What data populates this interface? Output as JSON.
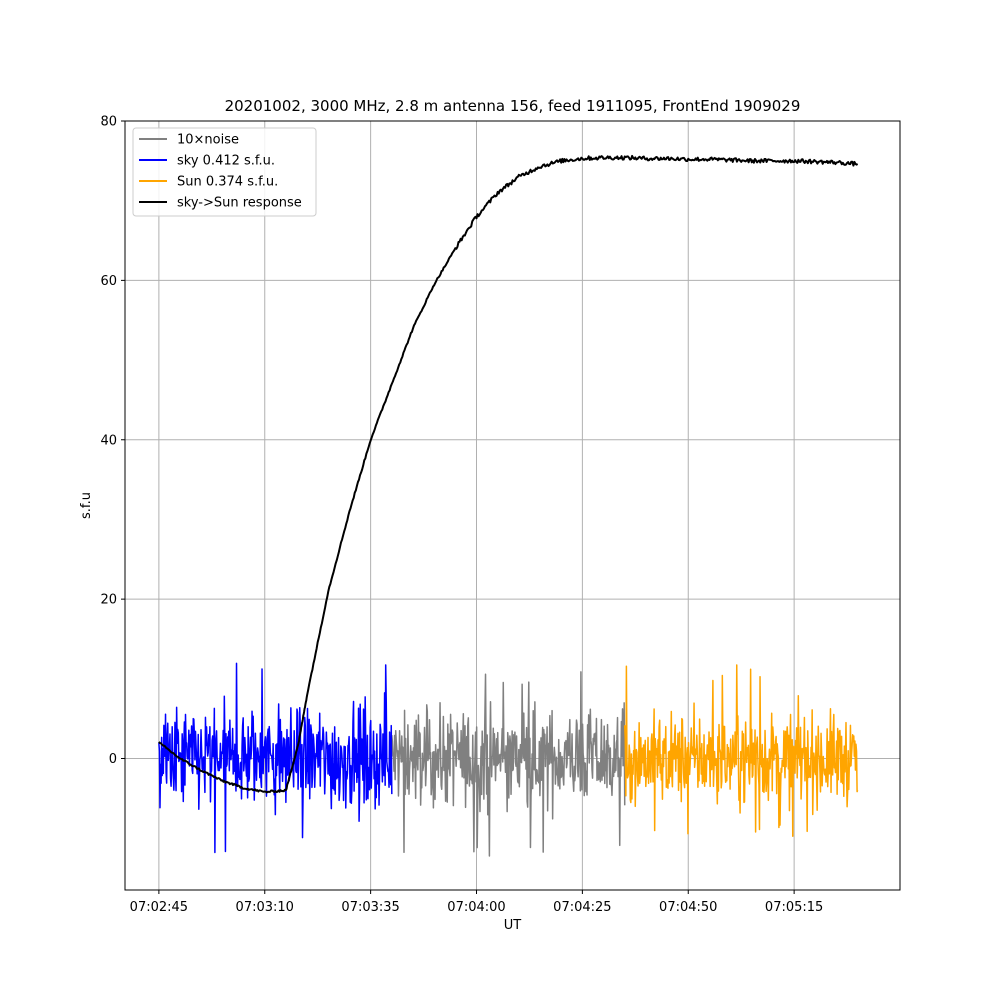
{
  "chart_data": {
    "type": "line",
    "title": "20201002, 3000 MHz, 2.8 m antenna 156, feed 1911095, FrontEnd 1909029",
    "xlabel": "UT",
    "ylabel": "s.f.u",
    "x_range": [
      "07:02:37",
      "07:05:40"
    ],
    "ylim": [
      -16.5,
      80
    ],
    "x_ticks": [
      "07:02:45",
      "07:03:10",
      "07:03:35",
      "07:04:00",
      "07:04:25",
      "07:04:50",
      "07:05:15"
    ],
    "y_ticks": [
      0,
      20,
      40,
      60,
      80
    ],
    "grid": true,
    "legend_position": "top-left",
    "series": [
      {
        "name": "10×noise",
        "color": "#808080",
        "x_range": [
          "07:03:40",
          "07:04:35"
        ],
        "kind": "noise",
        "amplitude_range": [
          -12.5,
          11
        ]
      },
      {
        "name": "sky 0.412 s.f.u.",
        "color": "#0000ff",
        "x_range": [
          "07:02:45",
          "07:03:40"
        ],
        "kind": "noise",
        "amplitude_range": [
          -12,
          13.5
        ]
      },
      {
        "name": "Sun 0.374 s.f.u.",
        "color": "#ffa500",
        "x_range": [
          "07:04:35",
          "07:05:30"
        ],
        "kind": "noise",
        "amplitude_range": [
          -10,
          12
        ]
      },
      {
        "name": "sky->Sun response",
        "color": "#000000",
        "points": [
          [
            "07:02:45",
            2.0
          ],
          [
            "07:02:50",
            0.0
          ],
          [
            "07:02:55",
            -1.5
          ],
          [
            "07:03:00",
            -2.8
          ],
          [
            "07:03:05",
            -3.7
          ],
          [
            "07:03:10",
            -4.2
          ],
          [
            "07:03:15",
            -4.0
          ],
          [
            "07:03:18",
            2.0
          ],
          [
            "07:03:20",
            8.0
          ],
          [
            "07:03:25",
            21.0
          ],
          [
            "07:03:30",
            31.0
          ],
          [
            "07:03:35",
            40.0
          ],
          [
            "07:03:40",
            47.0
          ],
          [
            "07:03:45",
            54.0
          ],
          [
            "07:03:50",
            59.5
          ],
          [
            "07:03:55",
            64.0
          ],
          [
            "07:04:00",
            68.0
          ],
          [
            "07:04:05",
            71.0
          ],
          [
            "07:04:10",
            73.0
          ],
          [
            "07:04:15",
            74.3
          ],
          [
            "07:04:20",
            75.0
          ],
          [
            "07:04:25",
            75.3
          ],
          [
            "07:04:30",
            75.4
          ],
          [
            "07:04:35",
            75.4
          ],
          [
            "07:04:40",
            75.3
          ],
          [
            "07:04:45",
            75.3
          ],
          [
            "07:04:50",
            75.2
          ],
          [
            "07:04:55",
            75.2
          ],
          [
            "07:05:00",
            75.1
          ],
          [
            "07:05:05",
            75.0
          ],
          [
            "07:05:10",
            75.0
          ],
          [
            "07:05:15",
            75.0
          ],
          [
            "07:05:20",
            74.9
          ],
          [
            "07:05:25",
            74.8
          ],
          [
            "07:05:30",
            74.6
          ]
        ]
      }
    ]
  }
}
